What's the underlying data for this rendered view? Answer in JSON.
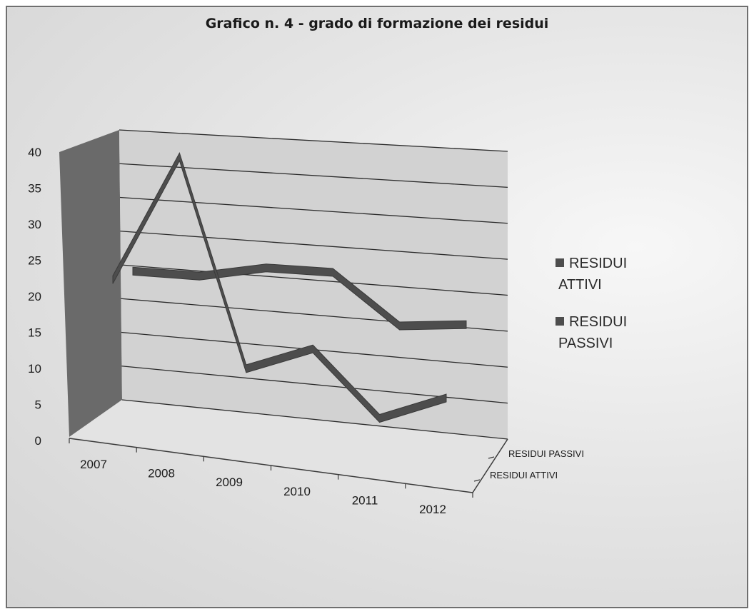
{
  "chart_data": {
    "type": "line",
    "title": "Grafico n. 4 - grado di formazione dei residui",
    "categories": [
      "2007",
      "2008",
      "2009",
      "2010",
      "2011",
      "2012"
    ],
    "series": [
      {
        "name": "RESIDUI ATTIVI",
        "values": [
          20,
          40,
          8,
          12,
          3,
          7
        ]
      },
      {
        "name": "RESIDUI PASSIVI",
        "values": [
          20,
          20,
          22,
          22,
          15,
          16
        ]
      }
    ],
    "yticks": [
      "0",
      "5",
      "10",
      "15",
      "20",
      "25",
      "30",
      "35",
      "40"
    ],
    "ylim": [
      0,
      40
    ],
    "depth_labels": [
      "RESIDUI PASSIVI",
      "RESIDUI ATTIVI"
    ],
    "legend": {
      "position": "right",
      "items": [
        {
          "line1": "RESIDUI",
          "line2": "ATTIVI"
        },
        {
          "line1": "RESIDUI",
          "line2": "PASSIVI"
        }
      ]
    },
    "grid": true,
    "style": "3d-line",
    "colors": {
      "series": "#4d4d4d",
      "grid": "#2a2a2a",
      "wall": "#d2d2d2",
      "side_wall": "#6a6a6a"
    }
  }
}
